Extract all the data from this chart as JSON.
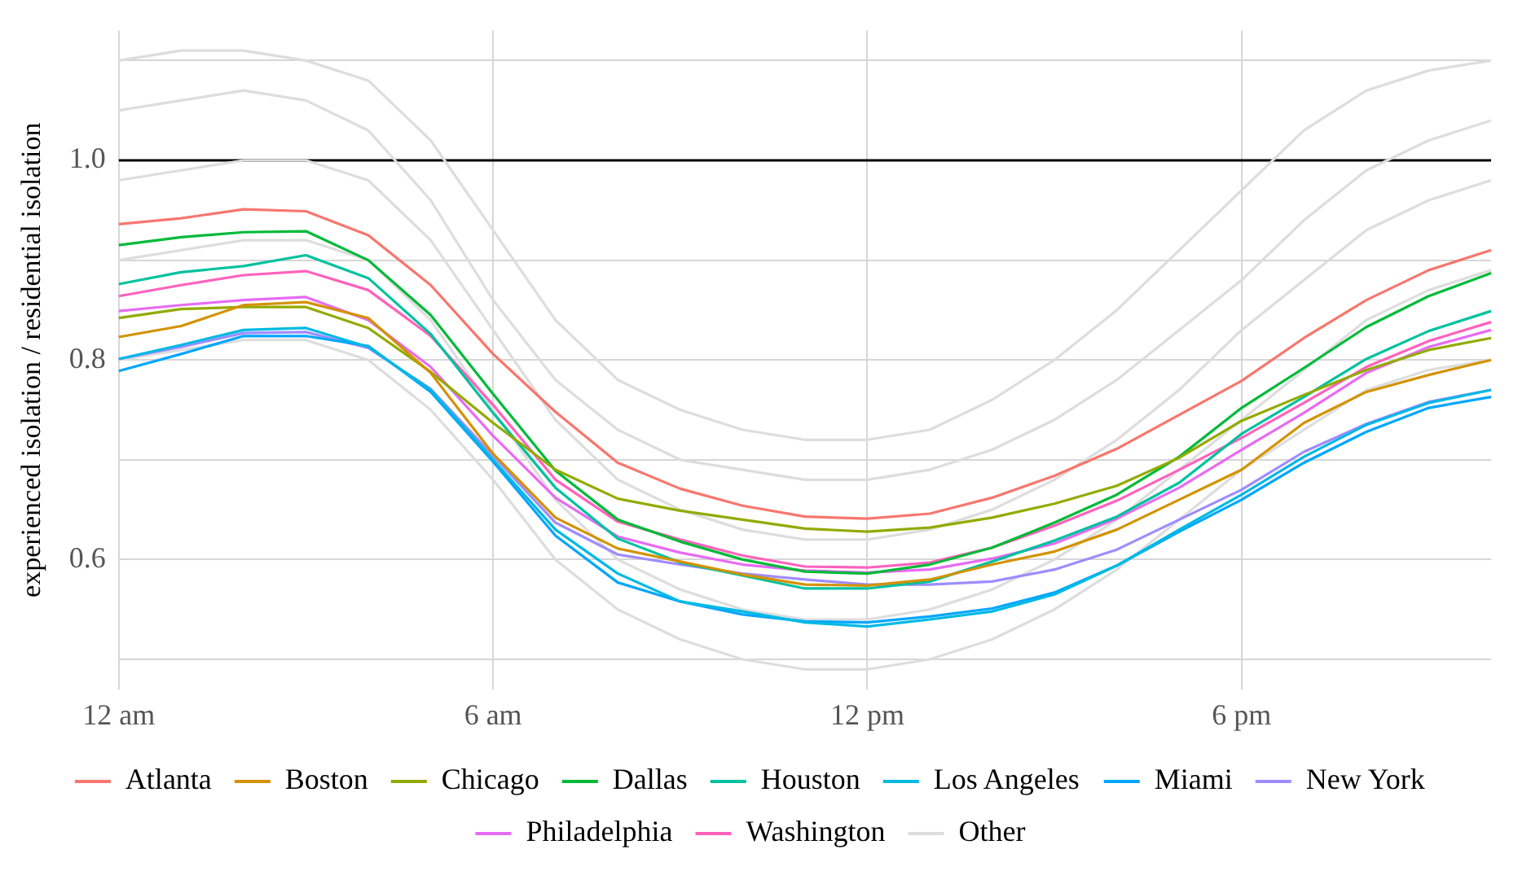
{
  "chart_data": {
    "type": "line",
    "ylabel": "experienced isolation / residential isolation",
    "categories": [
      "12 am",
      null,
      null,
      null,
      null,
      null,
      "6 am",
      null,
      null,
      null,
      null,
      null,
      "12 pm",
      null,
      null,
      null,
      null,
      null,
      "6 pm",
      null,
      null,
      null,
      null
    ],
    "ylim": [
      0.47,
      1.13
    ],
    "yticks": [
      {
        "value": 0.5,
        "label": null
      },
      {
        "value": 0.6,
        "label": "0.6"
      },
      {
        "value": 0.7,
        "label": null
      },
      {
        "value": 0.8,
        "label": "0.8"
      },
      {
        "value": 0.9,
        "label": null
      },
      {
        "value": 1,
        "label": "1.0"
      },
      {
        "value": 1.1,
        "label": null
      }
    ],
    "grid": true,
    "legend": "bottom",
    "ref_lines": [
      {
        "axis": "y",
        "value": 1,
        "color": "#000000"
      }
    ],
    "series": [
      {
        "name": "Atlanta",
        "color": "#f8766d",
        "values": [
          0.936,
          0.942,
          0.951,
          0.949,
          0.925,
          0.875,
          0.806,
          0.748,
          0.697,
          0.671,
          0.654,
          0.643,
          0.641,
          0.646,
          0.662,
          0.684,
          0.711,
          0.745,
          0.779,
          0.822,
          0.86,
          0.89,
          0.91
        ]
      },
      {
        "name": "Boston",
        "color": "#d39200",
        "values": [
          0.823,
          0.834,
          0.855,
          0.858,
          0.842,
          0.787,
          0.706,
          0.642,
          0.611,
          0.598,
          0.585,
          0.575,
          0.574,
          0.58,
          0.595,
          0.608,
          0.63,
          0.66,
          0.69,
          0.737,
          0.768,
          0.785,
          0.8
        ]
      },
      {
        "name": "Chicago",
        "color": "#93aa00",
        "values": [
          0.842,
          0.851,
          0.853,
          0.853,
          0.832,
          0.788,
          0.737,
          0.69,
          0.661,
          0.649,
          0.64,
          0.631,
          0.628,
          0.632,
          0.642,
          0.656,
          0.674,
          0.702,
          0.739,
          0.765,
          0.79,
          0.81,
          0.822
        ]
      },
      {
        "name": "Dallas",
        "color": "#00ba38",
        "values": [
          0.915,
          0.923,
          0.928,
          0.929,
          0.9,
          0.845,
          0.766,
          0.689,
          0.64,
          0.618,
          0.6,
          0.588,
          0.586,
          0.595,
          0.612,
          0.637,
          0.665,
          0.703,
          0.752,
          0.792,
          0.833,
          0.864,
          0.887
        ]
      },
      {
        "name": "Houston",
        "color": "#00c19f",
        "values": [
          0.876,
          0.888,
          0.894,
          0.905,
          0.882,
          0.826,
          0.747,
          0.672,
          0.621,
          0.597,
          0.584,
          0.571,
          0.571,
          0.578,
          0.598,
          0.619,
          0.643,
          0.677,
          0.726,
          0.763,
          0.801,
          0.829,
          0.849
        ]
      },
      {
        "name": "Los Angeles",
        "color": "#00b9e3",
        "values": [
          0.801,
          0.815,
          0.83,
          0.832,
          0.813,
          0.77,
          0.7,
          0.63,
          0.586,
          0.558,
          0.548,
          0.537,
          0.533,
          0.54,
          0.548,
          0.565,
          0.594,
          0.63,
          0.665,
          0.703,
          0.735,
          0.757,
          0.77
        ]
      },
      {
        "name": "Miami",
        "color": "#00a6ff",
        "values": [
          0.789,
          0.806,
          0.824,
          0.824,
          0.814,
          0.768,
          0.698,
          0.624,
          0.577,
          0.558,
          0.545,
          0.538,
          0.537,
          0.543,
          0.551,
          0.567,
          0.594,
          0.628,
          0.66,
          0.697,
          0.728,
          0.752,
          0.763
        ]
      },
      {
        "name": "New York",
        "color": "#9f8cff",
        "values": [
          0.801,
          0.813,
          0.827,
          0.828,
          0.812,
          0.771,
          0.704,
          0.637,
          0.605,
          0.595,
          0.586,
          0.58,
          0.575,
          0.575,
          0.578,
          0.59,
          0.61,
          0.64,
          0.67,
          0.708,
          0.736,
          0.758,
          0.77
        ]
      },
      {
        "name": "Philadelphia",
        "color": "#e76bf3",
        "values": [
          0.849,
          0.855,
          0.86,
          0.863,
          0.84,
          0.793,
          0.724,
          0.662,
          0.623,
          0.607,
          0.595,
          0.589,
          0.587,
          0.59,
          0.601,
          0.616,
          0.641,
          0.672,
          0.71,
          0.747,
          0.787,
          0.813,
          0.83
        ]
      },
      {
        "name": "Washington",
        "color": "#ff62bc",
        "values": [
          0.864,
          0.875,
          0.885,
          0.889,
          0.87,
          0.824,
          0.755,
          0.68,
          0.638,
          0.62,
          0.604,
          0.593,
          0.592,
          0.597,
          0.612,
          0.634,
          0.659,
          0.69,
          0.722,
          0.757,
          0.793,
          0.819,
          0.838
        ]
      },
      {
        "name": "Other",
        "color": "#dddddd",
        "values": [
          1.05,
          1.06,
          1.07,
          1.06,
          1.03,
          0.96,
          0.86,
          0.78,
          0.73,
          0.7,
          0.69,
          0.68,
          0.68,
          0.69,
          0.71,
          0.74,
          0.78,
          0.83,
          0.88,
          0.94,
          0.99,
          1.02,
          1.04
        ]
      },
      {
        "color": "#dddddd",
        "values": [
          0.98,
          0.99,
          1.0,
          1.0,
          0.98,
          0.92,
          0.83,
          0.74,
          0.68,
          0.65,
          0.63,
          0.62,
          0.62,
          0.63,
          0.65,
          0.68,
          0.72,
          0.77,
          0.83,
          0.88,
          0.93,
          0.96,
          0.98
        ]
      },
      {
        "color": "#dddddd",
        "values": [
          0.9,
          0.91,
          0.92,
          0.92,
          0.9,
          0.84,
          0.75,
          0.66,
          0.6,
          0.57,
          0.55,
          0.54,
          0.54,
          0.55,
          0.57,
          0.6,
          0.64,
          0.69,
          0.74,
          0.79,
          0.84,
          0.87,
          0.89
        ]
      },
      {
        "color": "#dddddd",
        "values": [
          1.1,
          1.11,
          1.11,
          1.1,
          1.08,
          1.02,
          0.93,
          0.84,
          0.78,
          0.75,
          0.73,
          0.72,
          0.72,
          0.73,
          0.76,
          0.8,
          0.85,
          0.91,
          0.97,
          1.03,
          1.07,
          1.09,
          1.1
        ]
      },
      {
        "color": "#dddddd",
        "values": [
          0.8,
          0.81,
          0.82,
          0.82,
          0.8,
          0.75,
          0.68,
          0.6,
          0.55,
          0.52,
          0.5,
          0.49,
          0.49,
          0.5,
          0.52,
          0.55,
          0.59,
          0.64,
          0.69,
          0.73,
          0.77,
          0.79,
          0.8
        ]
      }
    ]
  }
}
